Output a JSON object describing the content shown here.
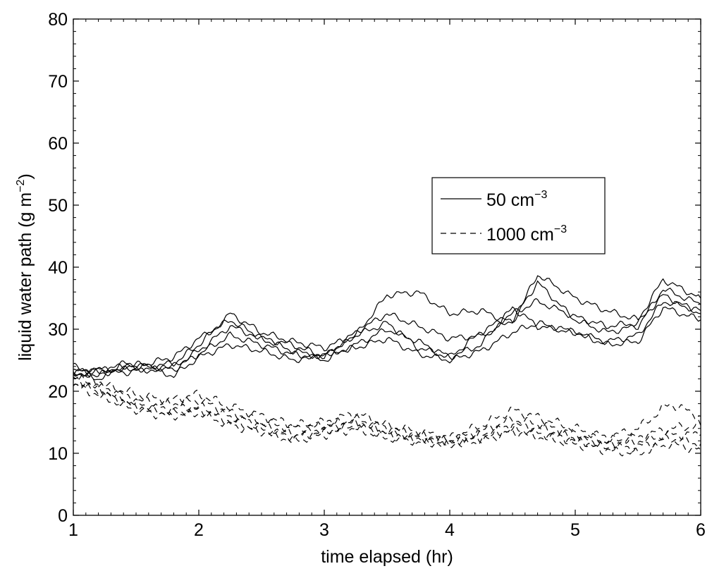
{
  "chart_data": {
    "type": "line",
    "title": "",
    "xlabel": "time elapsed (hr)",
    "ylabel": {
      "main": "liquid water path (g m",
      "sup": "−2",
      "close": ")"
    },
    "xlim": [
      1,
      6
    ],
    "ylim": [
      0,
      80
    ],
    "xticks": [
      1,
      2,
      3,
      4,
      5,
      6
    ],
    "yticks": [
      0,
      10,
      20,
      30,
      40,
      50,
      60,
      70,
      80
    ],
    "grid": false,
    "legend": {
      "placement": "center-right",
      "entries": [
        {
          "label": "50 cm",
          "sup": "−3",
          "style": "solid"
        },
        {
          "label": "1000 cm",
          "sup": "−3",
          "style": "dashed"
        }
      ]
    },
    "series": [
      {
        "style": "solid",
        "x": [
          1.0,
          1.2,
          1.4,
          1.6,
          1.8,
          2.0,
          2.25,
          2.5,
          2.75,
          3.0,
          3.25,
          3.5,
          3.75,
          4.0,
          4.25,
          4.5,
          4.7,
          5.0,
          5.25,
          5.5,
          5.7,
          6.0
        ],
        "y": [
          23.5,
          22.5,
          24.5,
          24.0,
          24.5,
          27.5,
          32.5,
          29.5,
          28.0,
          27.0,
          29.0,
          35.5,
          36.0,
          32.5,
          33.0,
          31.0,
          38.8,
          35.0,
          33.0,
          31.5,
          38.0,
          35.0
        ]
      },
      {
        "style": "solid",
        "x": [
          1.0,
          1.2,
          1.4,
          1.6,
          1.8,
          2.0,
          2.25,
          2.5,
          2.75,
          3.0,
          3.25,
          3.5,
          3.75,
          4.0,
          4.25,
          4.5,
          4.7,
          5.0,
          5.25,
          5.5,
          5.7,
          6.0
        ],
        "y": [
          22.5,
          23.5,
          24.0,
          24.5,
          25.5,
          28.5,
          31.5,
          28.5,
          27.5,
          25.5,
          29.5,
          32.5,
          30.5,
          28.5,
          29.0,
          31.5,
          37.5,
          31.5,
          29.5,
          30.5,
          36.5,
          34.0
        ]
      },
      {
        "style": "solid",
        "x": [
          1.0,
          1.2,
          1.4,
          1.6,
          1.8,
          2.0,
          2.25,
          2.5,
          2.75,
          3.0,
          3.25,
          3.5,
          3.75,
          4.0,
          4.25,
          4.5,
          4.7,
          5.0,
          5.25,
          5.5,
          5.7,
          6.0
        ],
        "y": [
          23.0,
          22.0,
          24.0,
          23.5,
          24.0,
          26.5,
          30.5,
          28.5,
          26.5,
          25.5,
          29.0,
          31.0,
          27.0,
          25.5,
          29.5,
          32.5,
          34.5,
          32.0,
          30.5,
          31.0,
          35.5,
          32.5
        ]
      },
      {
        "style": "solid",
        "x": [
          1.0,
          1.2,
          1.4,
          1.6,
          1.8,
          2.0,
          2.25,
          2.5,
          2.75,
          3.0,
          3.25,
          3.5,
          3.75,
          4.0,
          4.25,
          4.5,
          4.7,
          5.0,
          5.25,
          5.5,
          5.7,
          6.0
        ],
        "y": [
          23.0,
          23.5,
          23.5,
          24.0,
          23.5,
          26.0,
          29.0,
          27.5,
          26.0,
          25.0,
          27.5,
          30.0,
          28.0,
          25.5,
          27.5,
          33.5,
          30.5,
          29.5,
          28.0,
          29.0,
          34.5,
          33.0
        ]
      },
      {
        "style": "solid",
        "x": [
          1.0,
          1.2,
          1.4,
          1.6,
          1.8,
          2.0,
          2.25,
          2.5,
          2.75,
          3.0,
          3.25,
          3.5,
          3.75,
          4.0,
          4.25,
          4.5,
          4.7,
          5.0,
          5.25,
          5.5,
          5.7,
          6.0
        ],
        "y": [
          24.0,
          23.0,
          23.0,
          23.5,
          22.5,
          25.5,
          27.5,
          26.5,
          25.0,
          26.0,
          27.0,
          28.5,
          26.0,
          25.0,
          26.5,
          29.5,
          31.0,
          29.5,
          27.5,
          28.0,
          33.5,
          31.5
        ]
      },
      {
        "style": "dashed",
        "x": [
          1.0,
          1.25,
          1.5,
          1.75,
          2.0,
          2.25,
          2.5,
          2.75,
          3.0,
          3.25,
          3.5,
          3.75,
          4.0,
          4.25,
          4.5,
          4.75,
          5.0,
          5.25,
          5.5,
          5.75,
          6.0
        ],
        "y": [
          23.0,
          21.0,
          19.5,
          18.5,
          19.5,
          17.5,
          16.0,
          14.5,
          15.0,
          16.5,
          14.5,
          13.5,
          12.5,
          14.5,
          17.0,
          15.5,
          14.0,
          12.5,
          14.0,
          18.0,
          16.0
        ]
      },
      {
        "style": "dashed",
        "x": [
          1.0,
          1.25,
          1.5,
          1.75,
          2.0,
          2.25,
          2.5,
          2.75,
          3.0,
          3.25,
          3.5,
          3.75,
          4.0,
          4.25,
          4.5,
          4.75,
          5.0,
          5.25,
          5.5,
          5.75,
          6.0
        ],
        "y": [
          22.5,
          20.5,
          18.5,
          18.0,
          18.5,
          16.5,
          15.0,
          14.0,
          14.5,
          15.5,
          14.0,
          13.0,
          12.0,
          13.5,
          15.5,
          14.5,
          13.0,
          12.0,
          12.5,
          14.0,
          14.5
        ]
      },
      {
        "style": "dashed",
        "x": [
          1.0,
          1.25,
          1.5,
          1.75,
          2.0,
          2.25,
          2.5,
          2.75,
          3.0,
          3.25,
          3.5,
          3.75,
          4.0,
          4.25,
          4.5,
          4.75,
          5.0,
          5.25,
          5.5,
          5.75,
          6.0
        ],
        "y": [
          22.0,
          20.0,
          18.0,
          17.0,
          17.5,
          16.0,
          14.5,
          13.0,
          14.0,
          15.0,
          13.5,
          12.5,
          12.0,
          13.0,
          14.5,
          14.0,
          12.5,
          11.5,
          12.0,
          13.0,
          13.0
        ]
      },
      {
        "style": "dashed",
        "x": [
          1.0,
          1.25,
          1.5,
          1.75,
          2.0,
          2.25,
          2.5,
          2.75,
          3.0,
          3.25,
          3.5,
          3.75,
          4.0,
          4.25,
          4.5,
          4.75,
          5.0,
          5.25,
          5.5,
          5.75,
          6.0
        ],
        "y": [
          21.5,
          19.5,
          17.5,
          16.5,
          17.0,
          15.0,
          14.0,
          12.5,
          13.5,
          14.5,
          13.0,
          12.0,
          11.5,
          12.5,
          14.0,
          13.0,
          12.0,
          11.0,
          11.0,
          12.5,
          11.5
        ]
      },
      {
        "style": "dashed",
        "x": [
          1.0,
          1.25,
          1.5,
          1.75,
          2.0,
          2.25,
          2.5,
          2.75,
          3.0,
          3.25,
          3.5,
          3.75,
          4.0,
          4.25,
          4.5,
          4.75,
          5.0,
          5.25,
          5.5,
          5.75,
          6.0
        ],
        "y": [
          21.0,
          19.0,
          17.0,
          16.0,
          16.5,
          14.5,
          13.5,
          12.0,
          13.0,
          14.0,
          12.5,
          12.0,
          11.5,
          12.0,
          13.5,
          12.5,
          11.5,
          10.5,
          10.0,
          11.5,
          10.5
        ]
      }
    ]
  }
}
